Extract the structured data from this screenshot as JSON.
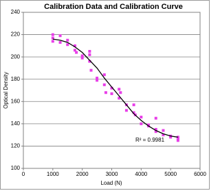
{
  "chart_data": {
    "type": "scatter",
    "title": "Calibration Data and Calibration Curve",
    "x_label": "Load (N)",
    "y_label": "Optical Density",
    "annotation": "R² = 0.9981",
    "xlim": [
      0,
      6000
    ],
    "xticks": [
      0,
      1000,
      2000,
      3000,
      4000,
      5000,
      6000
    ],
    "ylim": [
      100,
      240
    ],
    "yticks": [
      100,
      120,
      140,
      160,
      180,
      200,
      220,
      240
    ],
    "grid": true,
    "series": [
      {
        "type": "scatter",
        "color": "#e83ee8",
        "x": [
          1000,
          1000,
          1000,
          1250,
          1250,
          1500,
          1500,
          1750,
          1750,
          1800,
          2000,
          2000,
          2250,
          2250,
          2250,
          2300,
          2500,
          2500,
          2750,
          2750,
          2800,
          3000,
          3000,
          3250,
          3250,
          3300,
          3500,
          3500,
          3750,
          3750,
          3800,
          4000,
          4000,
          4250,
          4250,
          4500,
          4500,
          4500,
          4750,
          4750,
          5000,
          5000,
          5250,
          5250,
          5250
        ],
        "values": [
          220,
          217,
          214,
          219,
          213,
          215,
          211,
          210,
          206,
          204,
          201,
          199,
          205,
          202,
          196,
          188,
          181,
          179,
          184,
          175,
          168,
          172,
          167,
          171,
          163,
          168,
          157,
          152,
          157,
          150,
          148,
          146,
          140,
          138,
          139,
          145,
          135,
          133,
          134,
          130,
          128,
          129,
          128,
          125,
          127
        ]
      },
      {
        "type": "line",
        "color": "#000000",
        "x": [
          1000,
          1250,
          1500,
          1750,
          2000,
          2250,
          2500,
          2750,
          3000,
          3250,
          3500,
          3750,
          4000,
          4250,
          4500,
          4750,
          5000,
          5250
        ],
        "values": [
          216,
          215,
          213,
          209,
          204,
          197,
          190,
          181,
          173,
          165,
          157,
          149,
          143,
          138,
          134,
          131,
          129,
          128
        ]
      }
    ]
  }
}
